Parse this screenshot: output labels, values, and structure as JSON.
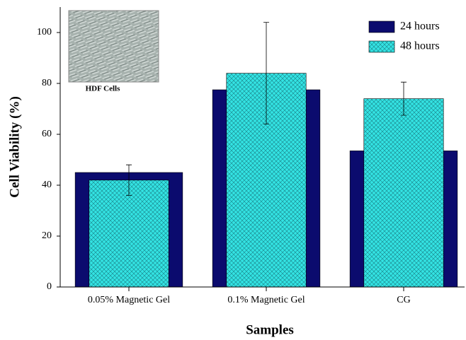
{
  "chart_data": {
    "type": "bar",
    "x_label": "Samples",
    "y_label": "Cell Viability (%)",
    "categories": [
      "0.05% Magnetic Gel",
      "0.1% Magnetic Gel",
      "CG"
    ],
    "series": [
      {
        "name": "24 hours",
        "color": "#0b0b6e",
        "values": [
          45,
          77.5,
          53.5
        ]
      },
      {
        "name": "48 hours",
        "color": "#33e3e3",
        "values": [
          42,
          84,
          74
        ],
        "errors": [
          6,
          20,
          6.5
        ]
      }
    ],
    "ylim": [
      0,
      110
    ],
    "yticks": [
      0,
      20,
      40,
      60,
      80,
      100
    ],
    "inset_label": "HDF Cells"
  }
}
